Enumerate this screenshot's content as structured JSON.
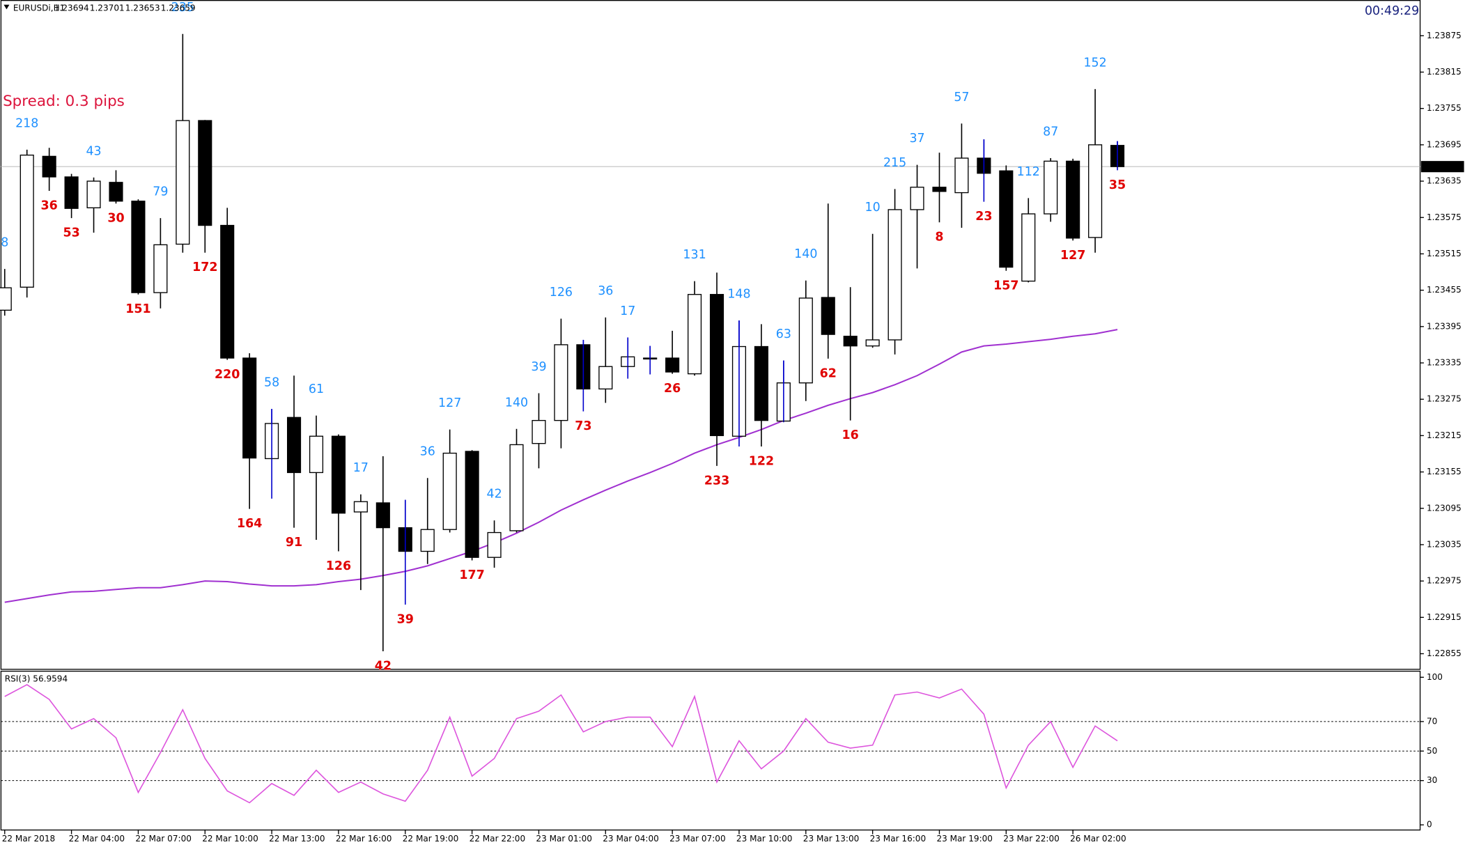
{
  "header": {
    "symbol": "EURUSDi,H1",
    "clock": "00:49:29",
    "spread_text": "Spread: 0.3 pips"
  },
  "chart_data": [
    {
      "type": "candlestick",
      "categories": [
        "22 Mar 2018",
        null,
        null,
        "22 Mar 04:00",
        null,
        null,
        "22 Mar 07:00",
        null,
        null,
        "22 Mar 10:00",
        null,
        null,
        "22 Mar 13:00",
        null,
        null,
        "22 Mar 16:00",
        null,
        null,
        "22 Mar 19:00",
        null,
        null,
        "22 Mar 22:00",
        null,
        null,
        "23 Mar 01:00",
        null,
        null,
        "23 Mar 04:00",
        null,
        null,
        "23 Mar 07:00",
        null,
        null,
        "23 Mar 10:00",
        null,
        null,
        "23 Mar 13:00",
        null,
        null,
        "23 Mar 16:00",
        null,
        null,
        "23 Mar 19:00",
        null,
        null,
        "23 Mar 22:00",
        null,
        null,
        "26 Mar 02:00",
        null,
        null
      ],
      "open": [
        1.23422,
        1.2346,
        1.23676,
        1.23642,
        1.23591,
        1.23633,
        1.23602,
        1.23451,
        1.23531,
        1.23735,
        1.23562,
        1.23343,
        1.23177,
        1.23245,
        1.23154,
        1.23214,
        1.23089,
        1.23104,
        1.23063,
        1.23024,
        1.2306,
        1.23189,
        1.23014,
        1.23058,
        1.23202,
        1.2324,
        1.23365,
        1.23292,
        1.23329,
        1.23343,
        1.23343,
        1.23317,
        1.23448,
        1.23214,
        1.23362,
        1.23239,
        1.23302,
        1.23443,
        1.23379,
        1.23363,
        1.23373,
        1.23588,
        1.23625,
        1.23616,
        1.23673,
        1.23652,
        1.2347,
        1.23581,
        1.23668,
        1.23542,
        1.23694
      ],
      "high": [
        1.2349,
        1.23687,
        1.2369,
        1.23647,
        1.23641,
        1.23653,
        1.23605,
        1.23574,
        1.23878,
        1.23736,
        1.23591,
        1.23351,
        1.23259,
        1.23314,
        1.23248,
        1.23217,
        1.23118,
        1.23181,
        1.23109,
        1.23145,
        1.23225,
        1.23191,
        1.23075,
        1.23226,
        1.23285,
        1.23408,
        1.23373,
        1.2341,
        1.23377,
        1.23363,
        1.23388,
        1.2347,
        1.23484,
        1.23405,
        1.23399,
        1.23339,
        1.23471,
        1.23598,
        1.2346,
        1.23548,
        1.23622,
        1.23662,
        1.23682,
        1.2373,
        1.23704,
        1.23661,
        1.23607,
        1.23673,
        1.23672,
        1.23787,
        1.23701
      ],
      "low": [
        1.23413,
        1.23443,
        1.23619,
        1.23574,
        1.2355,
        1.23598,
        1.23448,
        1.23425,
        1.23517,
        1.23517,
        1.2334,
        1.23094,
        1.23111,
        1.23063,
        1.23043,
        1.23024,
        1.2296,
        1.22859,
        1.22936,
        1.23003,
        1.23055,
        1.23009,
        1.22997,
        1.23055,
        1.23161,
        1.23194,
        1.23255,
        1.23269,
        1.23309,
        1.23316,
        1.23317,
        1.23314,
        1.23165,
        1.23197,
        1.23197,
        1.23237,
        1.23272,
        1.23342,
        1.2324,
        1.2336,
        1.23349,
        1.23491,
        1.23567,
        1.23558,
        1.23601,
        1.23487,
        1.23468,
        1.23568,
        1.23537,
        1.23517,
        1.23653
      ],
      "close": [
        1.23459,
        1.23678,
        1.23642,
        1.2359,
        1.23635,
        1.23602,
        1.23451,
        1.2353,
        1.23735,
        1.23562,
        1.23343,
        1.23178,
        1.23235,
        1.23154,
        1.23214,
        1.23087,
        1.23106,
        1.23063,
        1.23024,
        1.2306,
        1.23186,
        1.23014,
        1.23055,
        1.232,
        1.2324,
        1.23365,
        1.23292,
        1.23329,
        1.23345,
        1.23343,
        1.2332,
        1.23448,
        1.23215,
        1.23362,
        1.2324,
        1.23302,
        1.23442,
        1.23382,
        1.23363,
        1.23373,
        1.23588,
        1.23625,
        1.23618,
        1.23673,
        1.23648,
        1.23493,
        1.23581,
        1.23668,
        1.23541,
        1.23695,
        1.23659
      ],
      "wick_colors": [
        "#000",
        "#000",
        "#000",
        "#000",
        "#000",
        "#000",
        "#000",
        "#000",
        "#000",
        "#000",
        "#000",
        "#000",
        "#00c",
        "#000",
        "#000",
        "#000",
        "#000",
        "#000",
        "#00c",
        "#000",
        "#000",
        "#000",
        "#000",
        "#000",
        "#000",
        "#000",
        "#00c",
        "#000",
        "#00c",
        "#00c",
        "#000",
        "#000",
        "#000",
        "#00c",
        "#000",
        "#00c",
        "#000",
        "#000",
        "#000",
        "#000",
        "#000",
        "#000",
        "#000",
        "#000",
        "#00c",
        "#000",
        "#000",
        "#000",
        "#000",
        "#000",
        "#00c"
      ],
      "upper_labels": [
        8,
        218,
        null,
        null,
        43,
        null,
        null,
        79,
        235,
        null,
        null,
        null,
        58,
        null,
        61,
        null,
        17,
        null,
        null,
        36,
        127,
        null,
        42,
        140,
        39,
        126,
        null,
        36,
        17,
        null,
        null,
        131,
        null,
        148,
        null,
        63,
        140,
        null,
        null,
        10,
        215,
        37,
        null,
        57,
        null,
        null,
        112,
        87,
        null,
        152,
        null
      ],
      "lower_labels": [
        null,
        null,
        36,
        53,
        null,
        30,
        151,
        null,
        null,
        172,
        220,
        164,
        null,
        91,
        null,
        126,
        null,
        42,
        39,
        null,
        null,
        177,
        null,
        null,
        null,
        null,
        73,
        null,
        null,
        null,
        26,
        null,
        233,
        null,
        122,
        null,
        null,
        62,
        16,
        null,
        null,
        null,
        8,
        null,
        23,
        157,
        null,
        null,
        127,
        null,
        35
      ],
      "upper_color": "#1e90ff",
      "lower_color": "#e00000",
      "ma_values": [
        1.2294,
        1.22946,
        1.22952,
        1.22957,
        1.22958,
        1.22961,
        1.22964,
        1.22964,
        1.22969,
        1.22975,
        1.22974,
        1.2297,
        1.22967,
        1.22967,
        1.22969,
        1.22974,
        1.22978,
        1.22984,
        1.22991,
        1.23,
        1.23012,
        1.23024,
        1.23038,
        1.23054,
        1.23072,
        1.23092,
        1.23109,
        1.23125,
        1.2314,
        1.23154,
        1.23169,
        1.23186,
        1.232,
        1.23212,
        1.23225,
        1.2324,
        1.23252,
        1.23265,
        1.23276,
        1.23286,
        1.23299,
        1.23314,
        1.23333,
        1.23353,
        1.23363,
        1.23366,
        1.2337,
        1.23374,
        1.23379,
        1.23383,
        1.2339
      ],
      "ma_color": "#a030d0",
      "ylim": [
        1.2283,
        1.23934
      ],
      "yticks": [
        1.22855,
        1.22915,
        1.22975,
        1.23035,
        1.23095,
        1.23155,
        1.23215,
        1.23275,
        1.23335,
        1.23395,
        1.23455,
        1.23515,
        1.23575,
        1.23635,
        1.23695,
        1.23755,
        1.23815,
        1.23875
      ]
    },
    {
      "type": "line",
      "title": "RSI(3) 56.9594",
      "color": "#dd55dd",
      "values": [
        87,
        95,
        85,
        65,
        72,
        59,
        22,
        49,
        78,
        45,
        23,
        15,
        28,
        20,
        37,
        22,
        29,
        21,
        16,
        37,
        73,
        33,
        45,
        72,
        77,
        88,
        63,
        70,
        73,
        73,
        53,
        87,
        29,
        57,
        38,
        50,
        72,
        56,
        52,
        54,
        88,
        90,
        86,
        92,
        75,
        25,
        54,
        70,
        39,
        67,
        56.9594
      ],
      "ylim": [
        0,
        100
      ],
      "yticks": [
        0,
        30,
        50,
        70,
        100
      ],
      "levels": [
        30,
        50,
        70
      ]
    }
  ]
}
